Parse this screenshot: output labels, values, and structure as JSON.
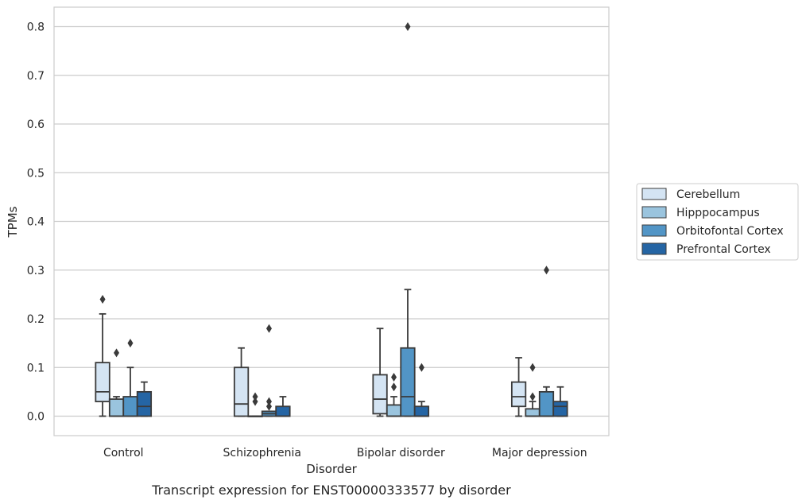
{
  "chart_data": {
    "type": "box",
    "title": "",
    "caption": "Transcript expression for ENST00000333577 by disorder",
    "xlabel": "Disorder",
    "ylabel": "TPMs",
    "ylim": [
      -0.04,
      0.84
    ],
    "yticks": [
      0.0,
      0.1,
      0.2,
      0.3,
      0.4,
      0.5,
      0.6,
      0.7,
      0.8
    ],
    "ytick_labels": [
      "0.0",
      "0.1",
      "0.2",
      "0.3",
      "0.4",
      "0.5",
      "0.6",
      "0.7",
      "0.8"
    ],
    "grid": true,
    "legend_position": "right",
    "categories": [
      "Control",
      "Schizophrenia",
      "Bipolar disorder",
      "Major depression"
    ],
    "series": [
      {
        "name": "Cerebellum",
        "color": "#d4e4f3",
        "boxes": [
          {
            "whislo": 0.0,
            "q1": 0.03,
            "med": 0.05,
            "q3": 0.11,
            "whishi": 0.21,
            "fliers": [
              0.24
            ]
          },
          {
            "whislo": 0.0,
            "q1": 0.0,
            "med": 0.025,
            "q3": 0.1,
            "whishi": 0.14,
            "fliers": []
          },
          {
            "whislo": 0.0,
            "q1": 0.005,
            "med": 0.035,
            "q3": 0.085,
            "whishi": 0.18,
            "fliers": []
          },
          {
            "whislo": 0.0,
            "q1": 0.02,
            "med": 0.04,
            "q3": 0.07,
            "whishi": 0.12,
            "fliers": []
          }
        ]
      },
      {
        "name": "Hipppocampus",
        "color": "#9ac4de",
        "boxes": [
          {
            "whislo": 0.0,
            "q1": 0.0,
            "med": 0.0,
            "q3": 0.035,
            "whishi": 0.04,
            "fliers": [
              0.13
            ]
          },
          {
            "whislo": 0.0,
            "q1": 0.0,
            "med": 0.0,
            "q3": 0.0,
            "whishi": 0.0,
            "fliers": [
              0.03,
              0.04
            ]
          },
          {
            "whislo": 0.0,
            "q1": 0.0,
            "med": 0.0,
            "q3": 0.023,
            "whishi": 0.04,
            "fliers": [
              0.06,
              0.08
            ]
          },
          {
            "whislo": 0.0,
            "q1": 0.0,
            "med": 0.0,
            "q3": 0.015,
            "whishi": 0.03,
            "fliers": [
              0.04,
              0.1
            ]
          }
        ]
      },
      {
        "name": "Orbitofontal Cortex",
        "color": "#5295c6",
        "boxes": [
          {
            "whislo": 0.0,
            "q1": 0.0,
            "med": 0.0,
            "q3": 0.04,
            "whishi": 0.1,
            "fliers": [
              0.15
            ]
          },
          {
            "whislo": 0.0,
            "q1": 0.0,
            "med": 0.005,
            "q3": 0.01,
            "whishi": 0.01,
            "fliers": [
              0.02,
              0.03,
              0.18
            ]
          },
          {
            "whislo": 0.0,
            "q1": 0.0,
            "med": 0.04,
            "q3": 0.14,
            "whishi": 0.26,
            "fliers": [
              0.8
            ]
          },
          {
            "whislo": 0.0,
            "q1": 0.0,
            "med": 0.0,
            "q3": 0.05,
            "whishi": 0.06,
            "fliers": [
              0.3
            ]
          }
        ]
      },
      {
        "name": "Prefrontal Cortex",
        "color": "#2565a4",
        "boxes": [
          {
            "whislo": 0.0,
            "q1": 0.0,
            "med": 0.02,
            "q3": 0.05,
            "whishi": 0.07,
            "fliers": []
          },
          {
            "whislo": 0.0,
            "q1": 0.0,
            "med": 0.0,
            "q3": 0.02,
            "whishi": 0.04,
            "fliers": []
          },
          {
            "whislo": 0.0,
            "q1": 0.0,
            "med": 0.0,
            "q3": 0.02,
            "whishi": 0.03,
            "fliers": [
              0.1
            ]
          },
          {
            "whislo": 0.0,
            "q1": 0.0,
            "med": 0.02,
            "q3": 0.03,
            "whishi": 0.06,
            "fliers": []
          }
        ]
      }
    ]
  }
}
